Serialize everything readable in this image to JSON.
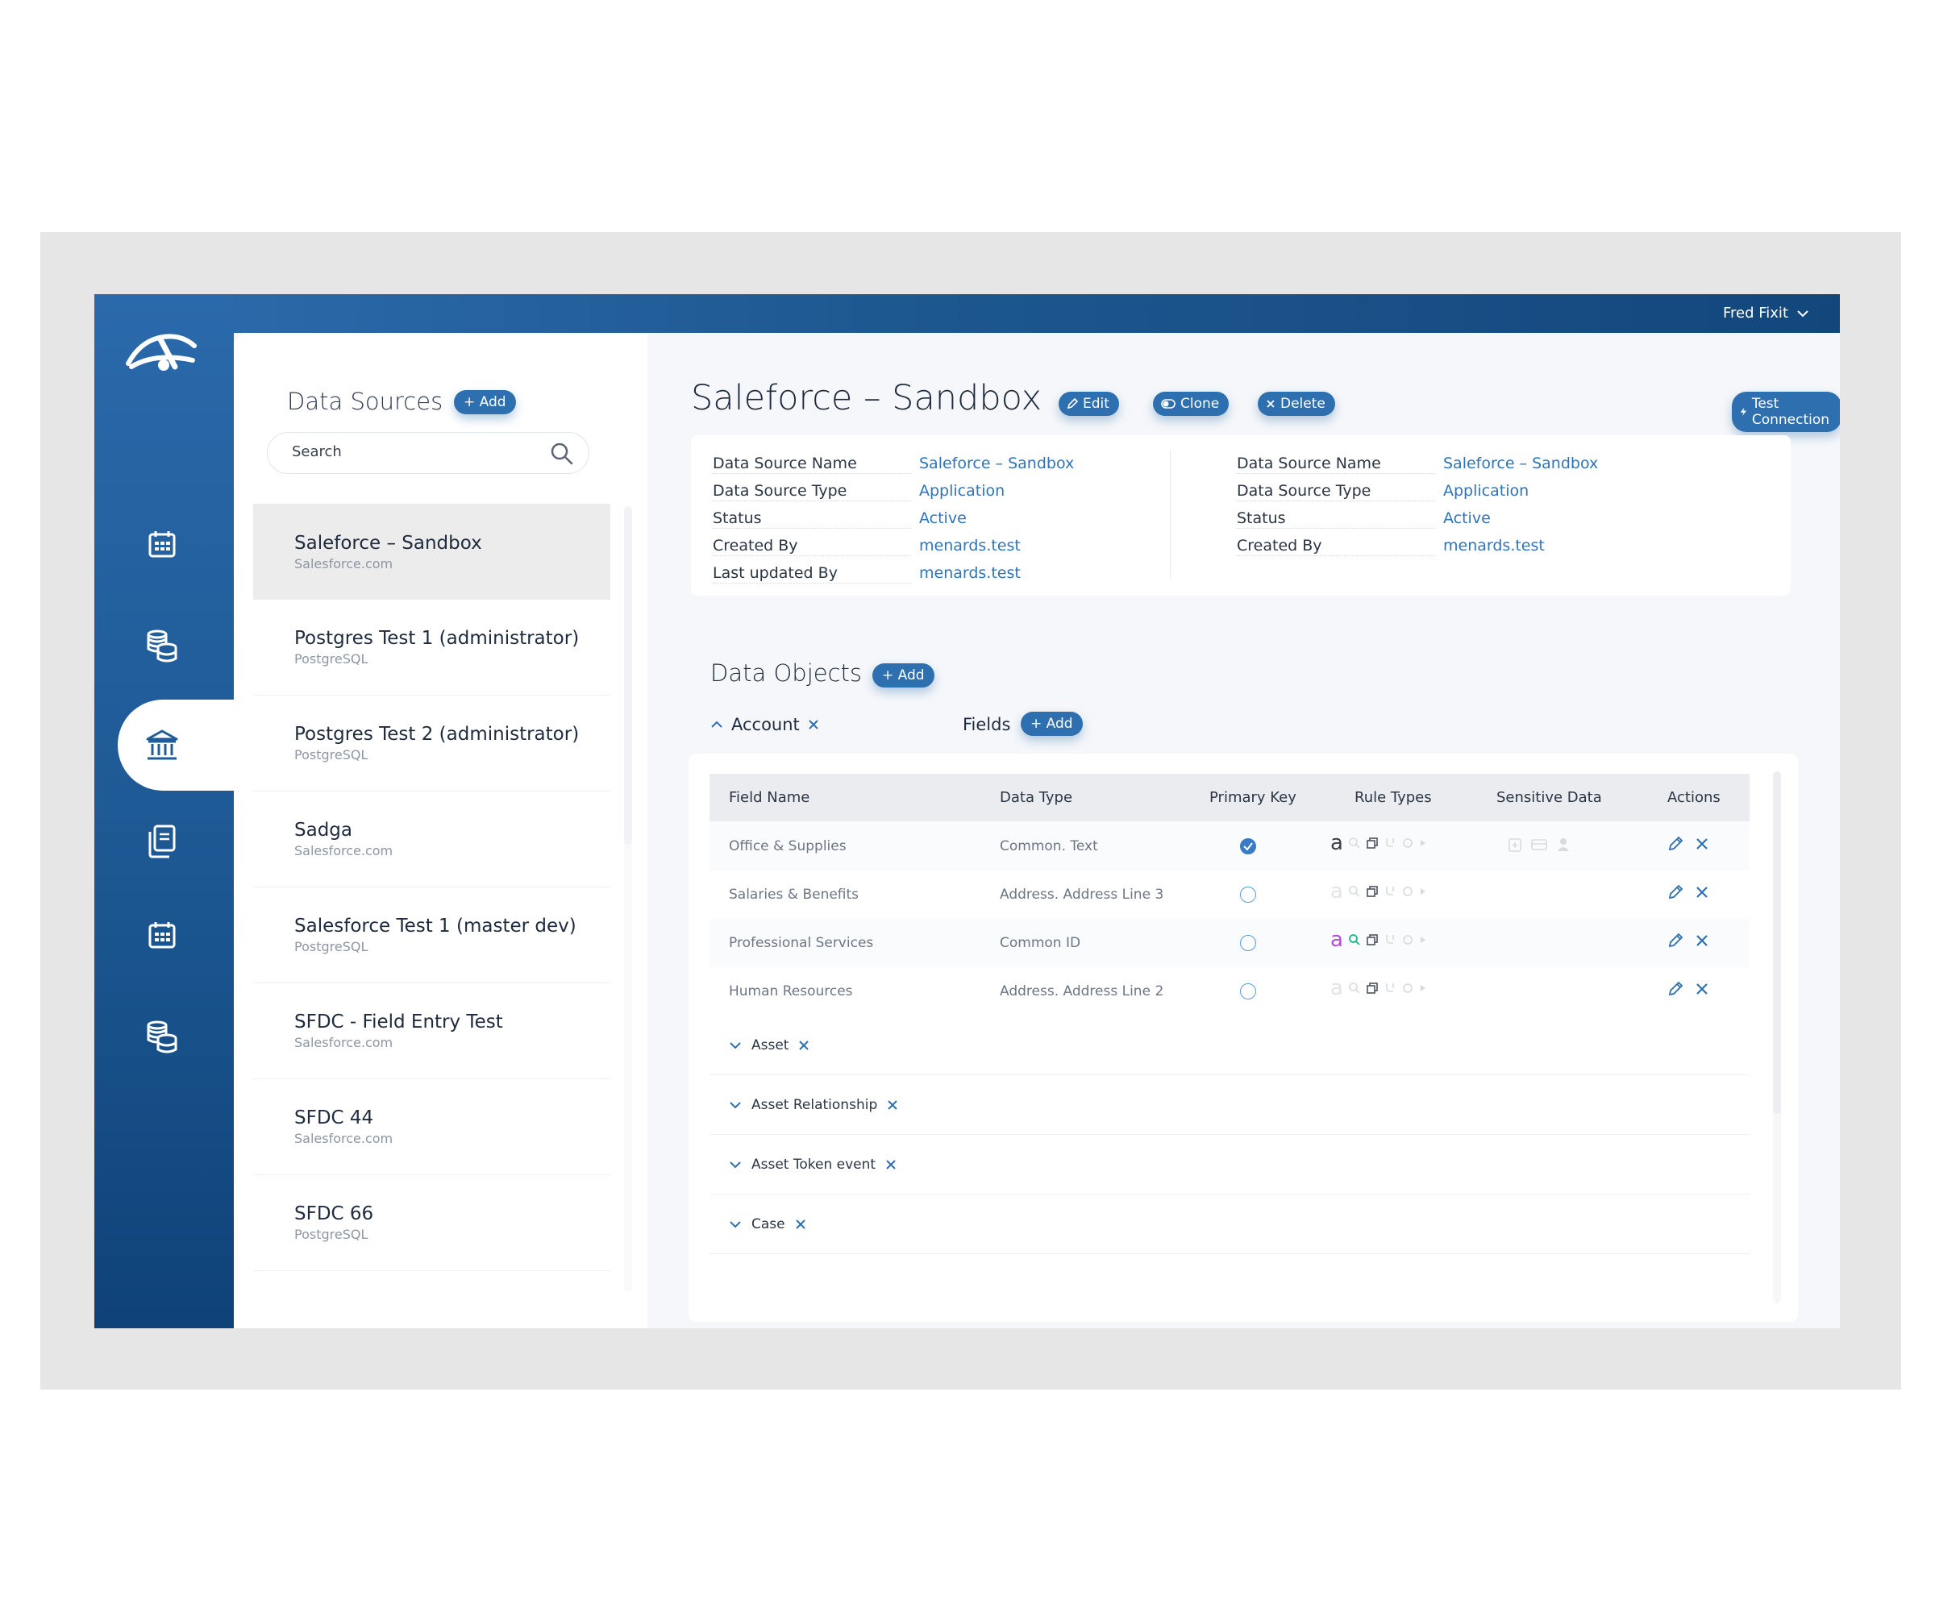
{
  "user": {
    "name": "Fred Fixit"
  },
  "sidebar": {
    "title": "Data Sources",
    "add_label": "+ Add",
    "search_placeholder": "Search",
    "items": [
      {
        "name": "Saleforce – Sandbox",
        "type": "Salesforce.com"
      },
      {
        "name": "Postgres Test 1 (administrator)",
        "type": "PostgreSQL"
      },
      {
        "name": "Postgres Test 2 (administrator)",
        "type": "PostgreSQL"
      },
      {
        "name": "Sadga",
        "type": "Salesforce.com"
      },
      {
        "name": "Salesforce Test 1 (master dev)",
        "type": "PostgreSQL"
      },
      {
        "name": "SFDC - Field Entry Test",
        "type": "Salesforce.com"
      },
      {
        "name": "SFDC 44",
        "type": "Salesforce.com"
      },
      {
        "name": "SFDC 66",
        "type": "PostgreSQL"
      }
    ]
  },
  "detail": {
    "title": "Saleforce – Sandbox",
    "edit_label": "Edit",
    "clone_label": "Clone",
    "delete_label": "Delete",
    "test_label": "Test Connection",
    "left": [
      {
        "label": "Data Source Name",
        "value": "Saleforce – Sandbox"
      },
      {
        "label": "Data Source Type",
        "value": "Application"
      },
      {
        "label": "Status",
        "value": "Active"
      },
      {
        "label": "Created By",
        "value": "menards.test"
      },
      {
        "label": "Last updated By",
        "value": "menards.test"
      }
    ],
    "right": [
      {
        "label": "Data Source Name",
        "value": "Saleforce – Sandbox"
      },
      {
        "label": "Data Source Type",
        "value": "Application"
      },
      {
        "label": "Status",
        "value": "Active"
      },
      {
        "label": "Created By",
        "value": "menards.test"
      }
    ]
  },
  "objects": {
    "title": "Data Objects",
    "add_label": "+ Add",
    "account_label": "Account",
    "fields_label": "Fields",
    "fields_add_label": "+ Add",
    "columns": [
      "Field Name",
      "Data Type",
      "Primary Key",
      "Rule Types",
      "Sensitive Data",
      "Actions"
    ],
    "rows": [
      {
        "field": "Office & Supplies",
        "type": "Common. Text",
        "primary": true
      },
      {
        "field": "Salaries & Benefits",
        "type": "Address. Address Line 3",
        "primary": false
      },
      {
        "field": "Professional Services",
        "type": "Common ID",
        "primary": false
      },
      {
        "field": "Human Resources",
        "type": "Address. Address Line 2",
        "primary": false
      }
    ],
    "groups": [
      "Asset",
      "Asset Relationship",
      "Asset Token event",
      "Case"
    ]
  },
  "colors": {
    "accent": "#2e6fb0",
    "link": "#2f74b8",
    "rail_top": "#2a69ab",
    "rail_bottom": "#0e4278"
  }
}
